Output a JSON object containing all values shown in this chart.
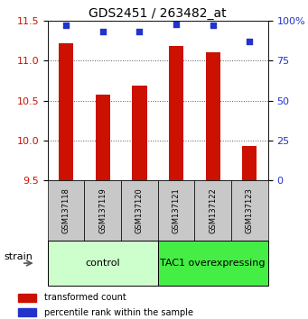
{
  "title": "GDS2451 / 263482_at",
  "samples": [
    "GSM137118",
    "GSM137119",
    "GSM137120",
    "GSM137121",
    "GSM137122",
    "GSM137123"
  ],
  "red_values": [
    11.22,
    10.57,
    10.69,
    11.18,
    11.1,
    9.93
  ],
  "blue_values": [
    97,
    93,
    93,
    98,
    97,
    87
  ],
  "ylim_left": [
    9.5,
    11.5
  ],
  "ylim_right": [
    0,
    100
  ],
  "yticks_left": [
    9.5,
    10.0,
    10.5,
    11.0,
    11.5
  ],
  "yticks_right": [
    0,
    25,
    50,
    75,
    100
  ],
  "ytick_labels_right": [
    "0",
    "25",
    "50",
    "75",
    "100%"
  ],
  "bar_color": "#cc1100",
  "dot_color": "#2233cc",
  "bar_width": 0.4,
  "grid_color": "#555555",
  "control_label": "control",
  "overexp_label": "TAC1 overexpressing",
  "strain_label": "strain",
  "legend_red": "transformed count",
  "legend_blue": "percentile rank within the sample",
  "bg_plot": "#ffffff",
  "bg_sample_box": "#c8c8c8",
  "bg_control": "#ccffcc",
  "bg_overexp": "#44ee44",
  "title_fontsize": 10,
  "tick_fontsize": 8,
  "sample_fontsize": 6,
  "group_fontsize": 8,
  "legend_fontsize": 7,
  "strain_fontsize": 8
}
